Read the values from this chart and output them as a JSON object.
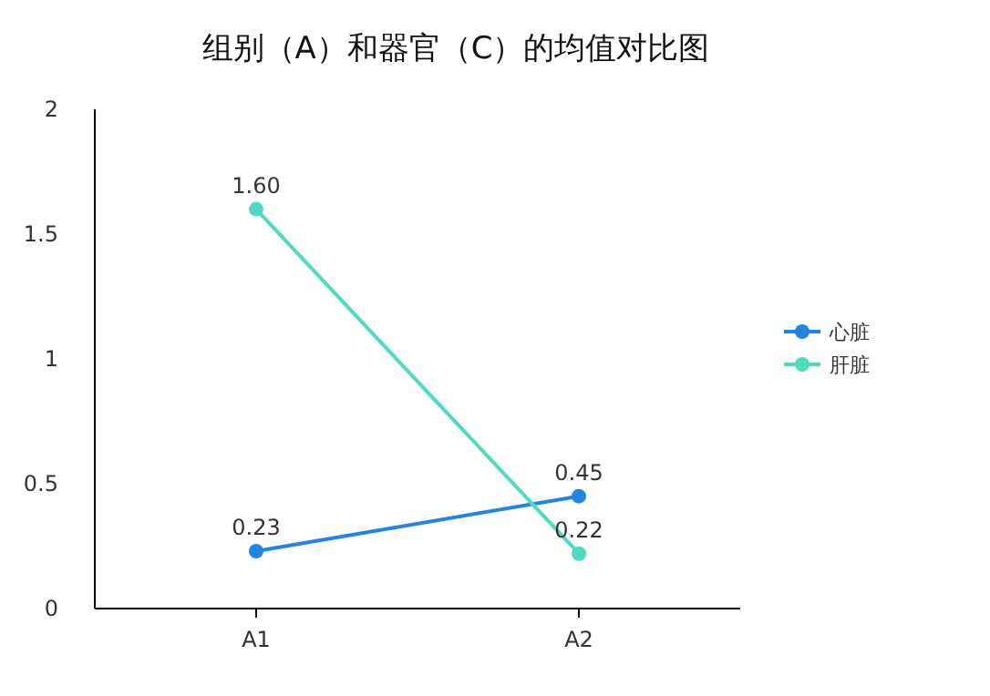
{
  "chart_data": {
    "type": "line",
    "title": "组别（A）和器官（C）的均值对比图",
    "categories": [
      "A1",
      "A2"
    ],
    "series": [
      {
        "name": "心脏",
        "color": "#2186e3",
        "values": [
          0.23,
          0.45
        ],
        "value_labels": [
          "0.23",
          "0.45"
        ]
      },
      {
        "name": "肝脏",
        "color": "#4fdbbf",
        "values": [
          1.6,
          0.22
        ],
        "value_labels": [
          "1.60",
          "0.22"
        ]
      }
    ],
    "ylim": [
      0,
      2
    ],
    "yticks": [
      0,
      0.5,
      1,
      1.5,
      2
    ],
    "marker": "circle",
    "legend": "right",
    "grid": false
  }
}
